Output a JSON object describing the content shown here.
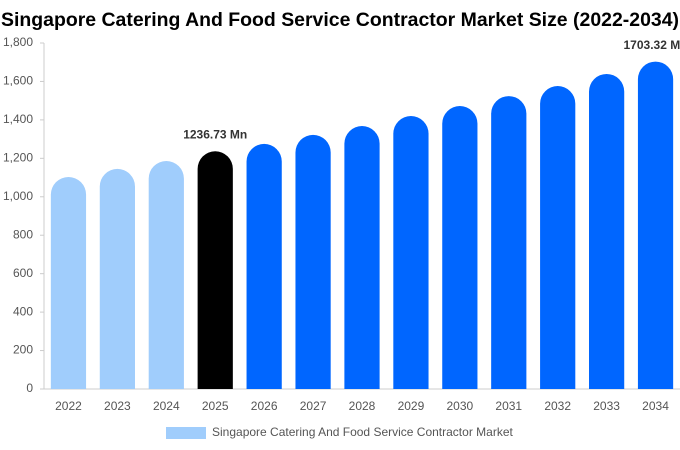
{
  "chart_data": {
    "type": "bar",
    "title": "Singapore Catering And Food Service Contractor Market Size (2022-2034)",
    "categories": [
      "2022",
      "2023",
      "2024",
      "2025",
      "2026",
      "2027",
      "2028",
      "2029",
      "2030",
      "2031",
      "2032",
      "2033",
      "2034"
    ],
    "series": [
      {
        "name": "Singapore Catering And Food Service Contractor Market",
        "color": "#a0cdfc",
        "values": [
          1103,
          1145,
          1186,
          1236.73,
          1275,
          1322,
          1368,
          1420,
          1472,
          1524,
          1576,
          1639,
          1703.32
        ],
        "value_labels": [
          null,
          null,
          null,
          "1236.73 Mn",
          null,
          null,
          null,
          null,
          null,
          null,
          null,
          null,
          "1703.32 Mn"
        ],
        "bar_colors": [
          "#a0cdfc",
          "#a0cdfc",
          "#a0cdfc",
          "#000000",
          "#0066ff",
          "#0066ff",
          "#0066ff",
          "#0066ff",
          "#0066ff",
          "#0066ff",
          "#0066ff",
          "#0066ff",
          "#0066ff"
        ]
      }
    ],
    "ylim": [
      0,
      1800
    ],
    "yticks": [
      0,
      200,
      400,
      600,
      800,
      {
        "value": 1000,
        "label": "1,000"
      },
      {
        "value": 1200,
        "label": "1,200"
      },
      {
        "value": 1400,
        "label": "1,400"
      },
      {
        "value": 1600,
        "label": "1,600"
      },
      {
        "value": 1800,
        "label": "1,800"
      }
    ],
    "grid": false,
    "legend": "bottom"
  }
}
